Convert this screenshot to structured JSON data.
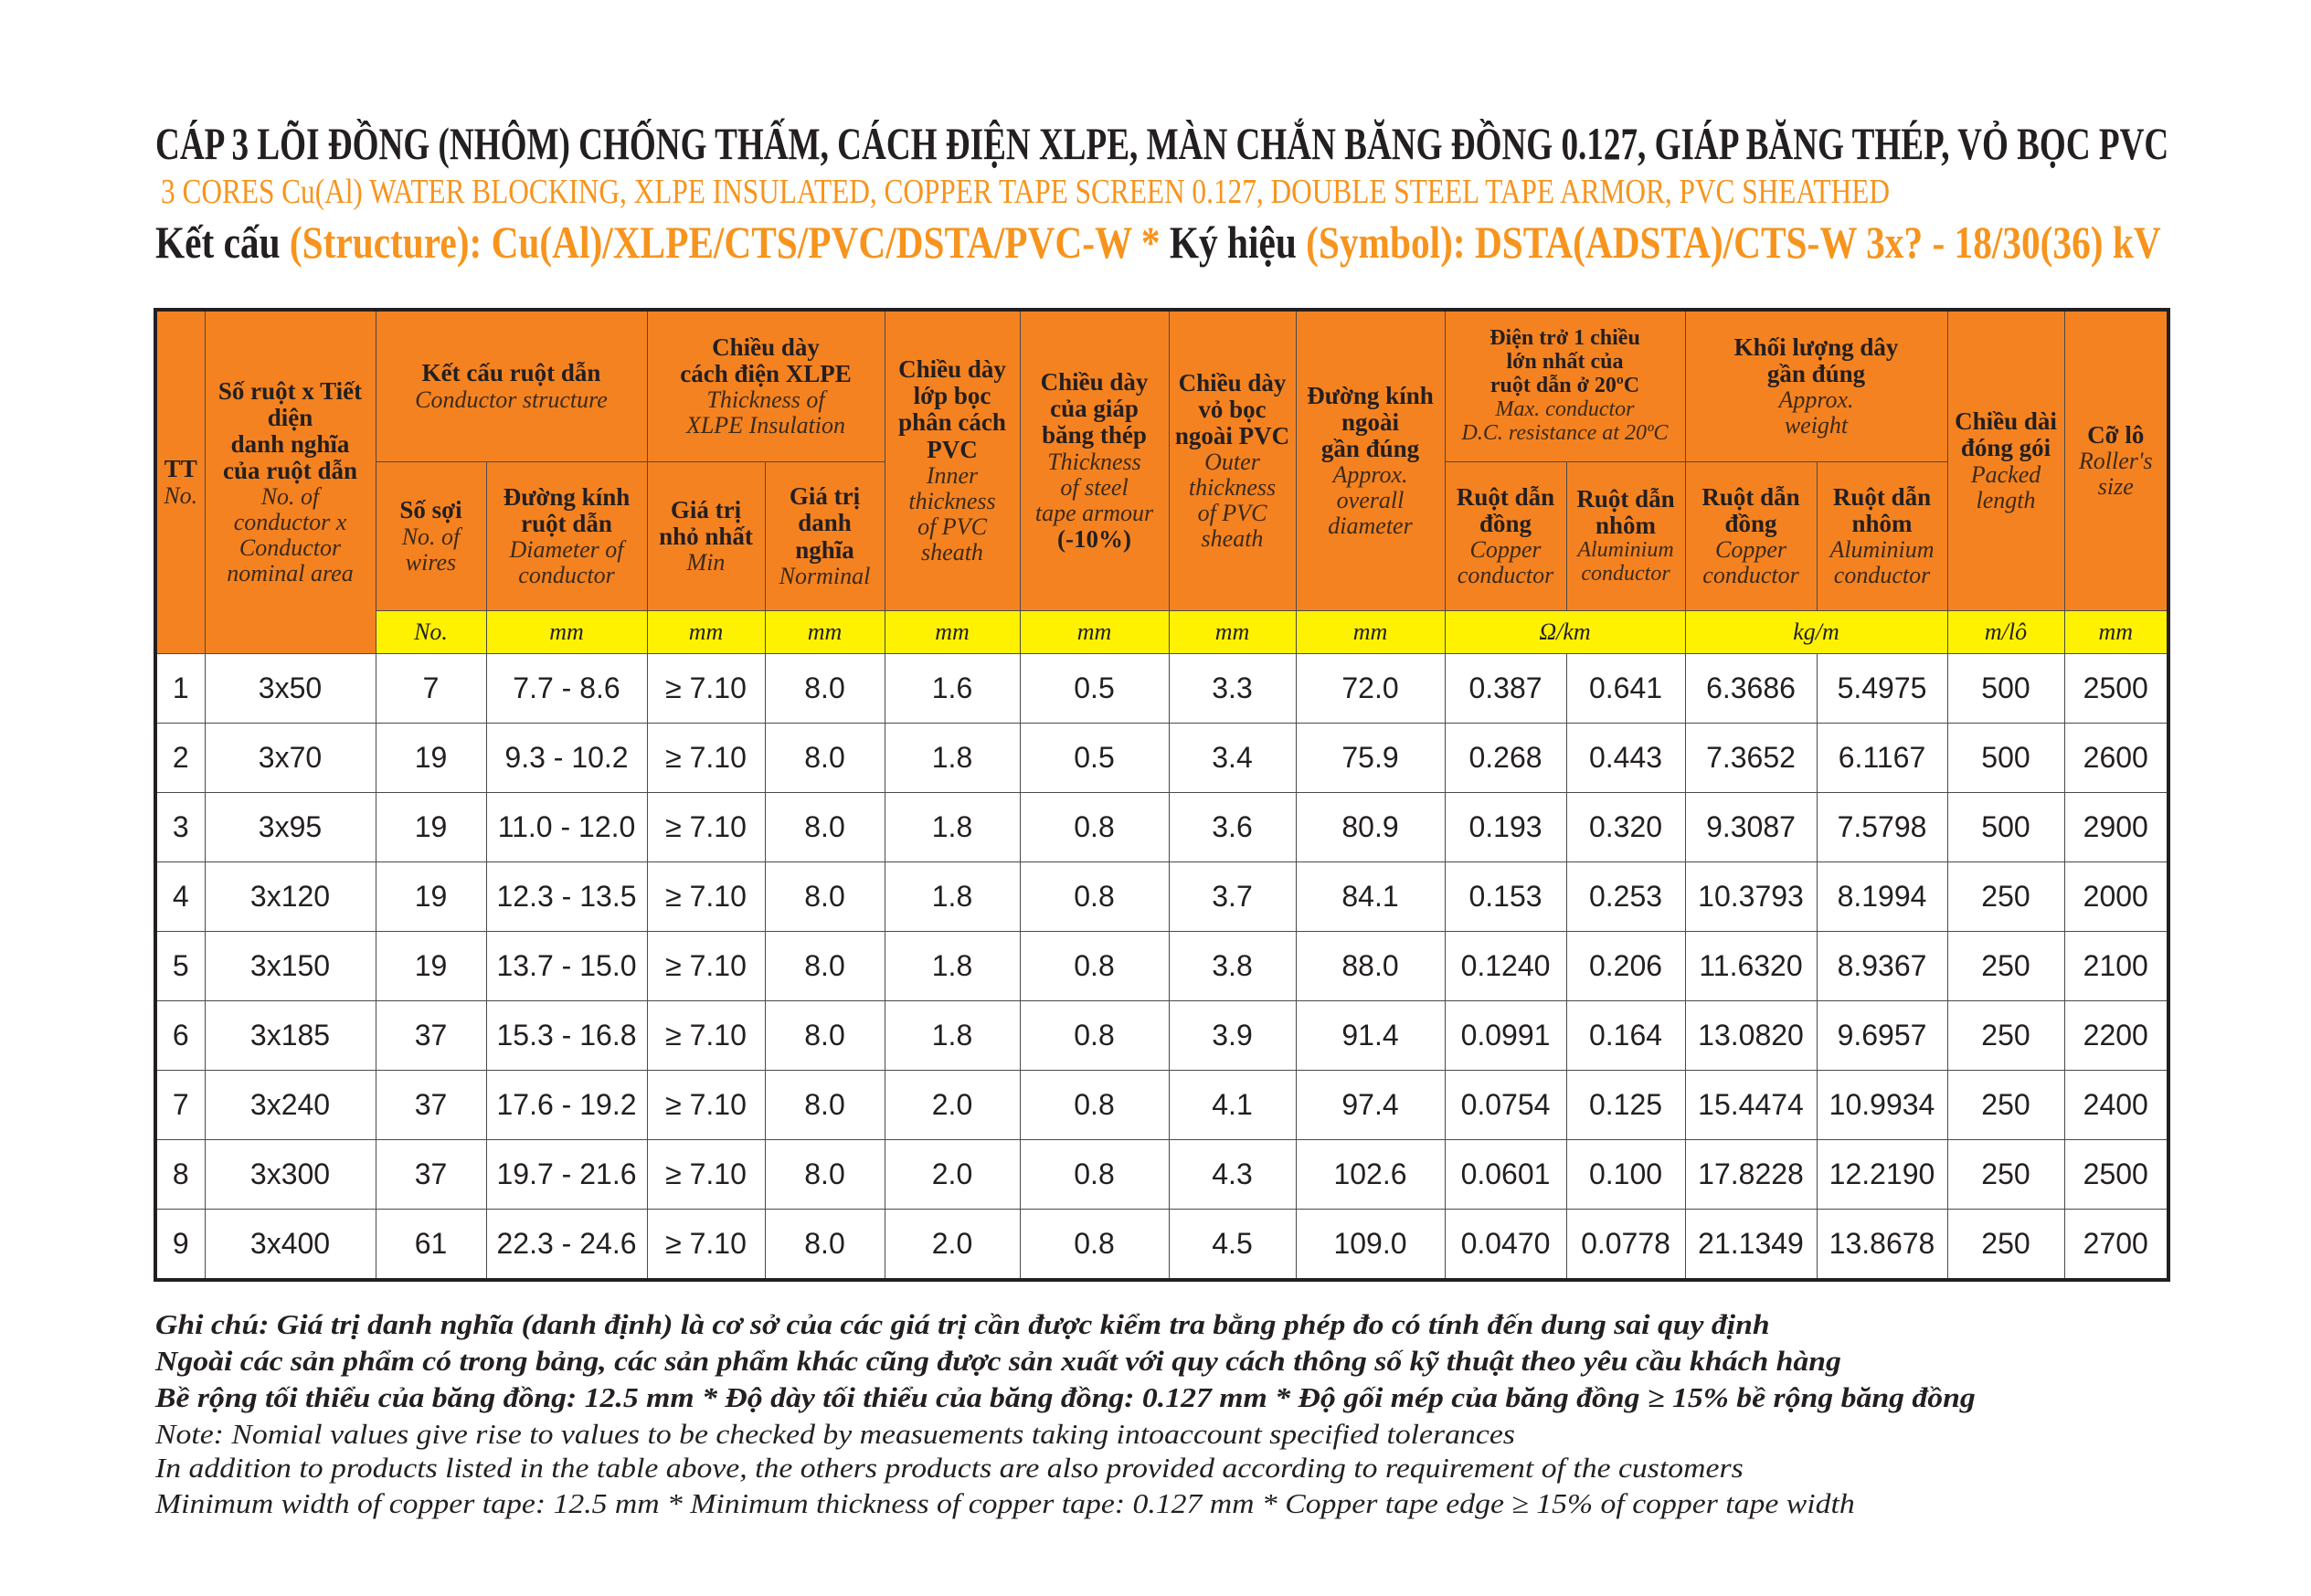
{
  "title": {
    "vi": "CÁP 3 LÕI ĐỒNG (NHÔM) CHỐNG THẤM, CÁCH ĐIỆN XLPE, MÀN CHẮN BĂNG ĐỒNG 0.127, GIÁP BĂNG THÉP,  VỎ BỌC PVC",
    "en": "3 CORES Cu(Al) WATER BLOCKING, XLPE INSULATED, COPPER TAPE SCREEN 0.127, DOUBLE STEEL TAPE ARMOR,  PVC SHEATHED",
    "structure_label": "Kết cấu ",
    "structure_value": "(Structure): Cu(Al)/XLPE/CTS/PVC/DSTA/PVC-W",
    "separator": "  *  ",
    "symbol_label": "Ký hiệu ",
    "symbol_value": "(Symbol): DSTA(ADSTA)/CTS-W 3x? - 18/30(36) kV"
  },
  "colors": {
    "header_orange": "#F58220",
    "unit_yellow": "#FFF200",
    "title_orange": "#F7941D"
  },
  "table": {
    "headers": {
      "tt": {
        "vi": "TT",
        "en": "No."
      },
      "size": {
        "vi": "Số ruột x Tiết\ndiện\ndanh nghĩa\ncủa ruột dẫn",
        "en": "No. of\nconductor x\nConductor\nnominal area"
      },
      "conductor_structure": {
        "vi": "Kết cấu ruột dẫn",
        "en": "Conductor structure"
      },
      "wires": {
        "vi": "Số sợi",
        "en": "No. of\nwires"
      },
      "conductor_diameter": {
        "vi": "Đường kính\nruột dẫn",
        "en": "Diameter of\nconductor"
      },
      "xlpe": {
        "vi": "Chiều dày\ncách điện XLPE",
        "en": "Thickness of\nXLPE Insulation"
      },
      "xlpe_min": {
        "vi": "Giá trị\nnhỏ nhất",
        "en": "Min"
      },
      "xlpe_nominal": {
        "vi": "Giá trị\ndanh\nnghĩa",
        "en": "Norminal"
      },
      "inner_pvc": {
        "vi": "Chiều dày\nlớp bọc\nphân cách\nPVC",
        "en": "Inner\nthickness\nof PVC\nsheath"
      },
      "armour": {
        "vi": "Chiều dày\ncủa giáp\nbăng thép",
        "en": "Thickness\nof steel\ntape armour",
        "vi2": "(-10%)"
      },
      "outer_pvc": {
        "vi": "Chiều dày\nvỏ bọc\nngoài PVC",
        "en": "Outer\nthickness\nof PVC\nsheath"
      },
      "overall_diameter": {
        "vi": "Đường kính\nngoài\ngần đúng",
        "en": "Approx.\noverall\ndiameter"
      },
      "resistance": {
        "vi": "Điện trở 1 chiều\nlớn nhất của\nruột dẫn ở 20ºC",
        "en": "Max. conductor\nD.C. resistance at 20ºC"
      },
      "res_cu": {
        "vi": "Ruột dẫn\nđồng",
        "en": "Copper\nconductor"
      },
      "res_al": {
        "vi": "Ruột dẫn\nnhôm",
        "en": "Aluminium\nconductor"
      },
      "weight": {
        "vi": "Khối lượng dây\ngần đúng",
        "en": "Approx.\nweight"
      },
      "w_cu": {
        "vi": "Ruột dẫn\nđồng",
        "en": "Copper\nconductor"
      },
      "w_al": {
        "vi": "Ruột dẫn\nnhôm",
        "en": "Aluminium\nconductor"
      },
      "packed": {
        "vi": "Chiều dài\nđóng gói",
        "en": "Packed\nlength"
      },
      "roller": {
        "vi": "Cỡ lô",
        "en": "Roller's\nsize"
      }
    },
    "units": [
      "No.",
      "mm",
      "mm",
      "mm",
      "mm",
      "mm",
      "mm",
      "mm",
      "Ω/km",
      "kg/m",
      "m/lô",
      "mm"
    ],
    "rows": [
      [
        "1",
        "3x50",
        "7",
        "7.7 - 8.6",
        "≥ 7.10",
        "8.0",
        "1.6",
        "0.5",
        "3.3",
        "72.0",
        "0.387",
        "0.641",
        "6.3686",
        "5.4975",
        "500",
        "2500"
      ],
      [
        "2",
        "3x70",
        "19",
        "9.3 - 10.2",
        "≥ 7.10",
        "8.0",
        "1.8",
        "0.5",
        "3.4",
        "75.9",
        "0.268",
        "0.443",
        "7.3652",
        "6.1167",
        "500",
        "2600"
      ],
      [
        "3",
        "3x95",
        "19",
        "11.0 - 12.0",
        "≥ 7.10",
        "8.0",
        "1.8",
        "0.8",
        "3.6",
        "80.9",
        "0.193",
        "0.320",
        "9.3087",
        "7.5798",
        "500",
        "2900"
      ],
      [
        "4",
        "3x120",
        "19",
        "12.3 - 13.5",
        "≥ 7.10",
        "8.0",
        "1.8",
        "0.8",
        "3.7",
        "84.1",
        "0.153",
        "0.253",
        "10.3793",
        "8.1994",
        "250",
        "2000"
      ],
      [
        "5",
        "3x150",
        "19",
        "13.7 - 15.0",
        "≥ 7.10",
        "8.0",
        "1.8",
        "0.8",
        "3.8",
        "88.0",
        "0.1240",
        "0.206",
        "11.6320",
        "8.9367",
        "250",
        "2100"
      ],
      [
        "6",
        "3x185",
        "37",
        "15.3 - 16.8",
        "≥ 7.10",
        "8.0",
        "1.8",
        "0.8",
        "3.9",
        "91.4",
        "0.0991",
        "0.164",
        "13.0820",
        "9.6957",
        "250",
        "2200"
      ],
      [
        "7",
        "3x240",
        "37",
        "17.6 - 19.2",
        "≥ 7.10",
        "8.0",
        "2.0",
        "0.8",
        "4.1",
        "97.4",
        "0.0754",
        "0.125",
        "15.4474",
        "10.9934",
        "250",
        "2400"
      ],
      [
        "8",
        "3x300",
        "37",
        "19.7 - 21.6",
        "≥ 7.10",
        "8.0",
        "2.0",
        "0.8",
        "4.3",
        "102.6",
        "0.0601",
        "0.100",
        "17.8228",
        "12.2190",
        "250",
        "2500"
      ],
      [
        "9",
        "3x400",
        "61",
        "22.3 - 24.6",
        "≥ 7.10",
        "8.0",
        "2.0",
        "0.8",
        "4.5",
        "109.0",
        "0.0470",
        "0.0778",
        "21.1349",
        "13.8678",
        "250",
        "2700"
      ]
    ]
  },
  "notes": [
    "Ghi chú: Giá trị danh nghĩa (danh định) là cơ sở của các giá trị cần được kiểm tra bằng phép đo có tính đến dung sai quy định",
    "Ngoài các sản phẩm có trong bảng, các sản phẩm khác cũng được sản xuất với quy cách thông số kỹ thuật theo yêu cầu khách hàng",
    "Bề rộng tối thiểu của băng đồng: 12.5 mm * Độ dày tối thiểu của băng đồng: 0.127 mm * Độ gối mép của băng đồng ≥ 15% bề rộng băng đồng",
    "Note: Nomial values give rise to values to be checked by measuements taking intoaccount specified tolerances",
    "In addition to products listed in the table above, the others products are also provided according to requirement of the customers",
    "Minimum width of copper tape: 12.5 mm * Minimum thickness of copper tape: 0.127 mm * Copper tape edge ≥ 15% of copper tape width"
  ]
}
